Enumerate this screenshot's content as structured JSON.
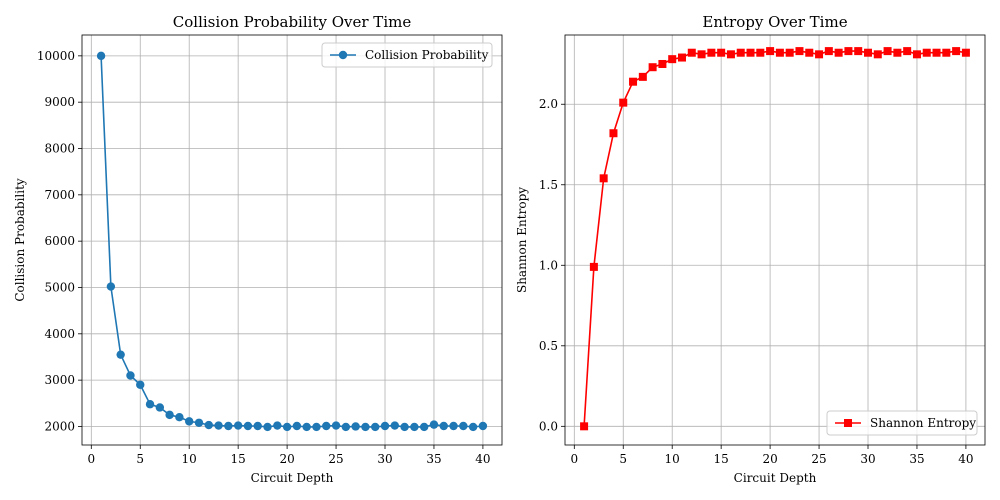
{
  "chart_data": [
    {
      "type": "line",
      "title": "Collision Probability Over Time",
      "xlabel": "Circuit Depth",
      "ylabel": "Collision Probability",
      "xlim": [
        -0.95,
        41.95
      ],
      "ylim": [
        1600,
        10450
      ],
      "xticks": [
        0,
        5,
        10,
        15,
        20,
        25,
        30,
        35,
        40
      ],
      "yticks": [
        2000,
        3000,
        4000,
        5000,
        6000,
        7000,
        8000,
        9000,
        10000
      ],
      "grid": true,
      "legend_position": "upper-right",
      "series": [
        {
          "name": "Collision Probability",
          "color": "#1f77b4",
          "marker": "circle",
          "x": [
            1,
            2,
            3,
            4,
            5,
            6,
            7,
            8,
            9,
            10,
            11,
            12,
            13,
            14,
            15,
            16,
            17,
            18,
            19,
            20,
            21,
            22,
            23,
            24,
            25,
            26,
            27,
            28,
            29,
            30,
            31,
            32,
            33,
            34,
            35,
            36,
            37,
            38,
            39,
            40
          ],
          "y": [
            10000,
            5020,
            3550,
            3100,
            2900,
            2480,
            2410,
            2250,
            2200,
            2110,
            2080,
            2030,
            2020,
            2010,
            2020,
            2010,
            2010,
            1990,
            2020,
            1990,
            2010,
            1990,
            1990,
            2010,
            2020,
            1990,
            2000,
            1990,
            1990,
            2010,
            2020,
            1990,
            1990,
            1990,
            2040,
            2010,
            2010,
            2010,
            1990,
            2010
          ]
        }
      ]
    },
    {
      "type": "line",
      "title": "Entropy Over Time",
      "xlabel": "Circuit Depth",
      "ylabel": "Shannon Entropy",
      "xlim": [
        -0.95,
        41.95
      ],
      "ylim": [
        -0.116,
        2.43
      ],
      "xticks": [
        0,
        5,
        10,
        15,
        20,
        25,
        30,
        35,
        40
      ],
      "yticks": [
        0.0,
        0.5,
        1.0,
        1.5,
        2.0
      ],
      "ytick_labels": [
        "0.0",
        "0.5",
        "1.0",
        "1.5",
        "2.0"
      ],
      "grid": true,
      "legend_position": "lower-right",
      "series": [
        {
          "name": "Shannon Entropy",
          "color": "#ff0000",
          "marker": "square",
          "x": [
            1,
            2,
            3,
            4,
            5,
            6,
            7,
            8,
            9,
            10,
            11,
            12,
            13,
            14,
            15,
            16,
            17,
            18,
            19,
            20,
            21,
            22,
            23,
            24,
            25,
            26,
            27,
            28,
            29,
            30,
            31,
            32,
            33,
            34,
            35,
            36,
            37,
            38,
            39,
            40
          ],
          "y": [
            0.0,
            0.99,
            1.54,
            1.82,
            2.01,
            2.14,
            2.17,
            2.23,
            2.25,
            2.28,
            2.29,
            2.32,
            2.31,
            2.32,
            2.32,
            2.31,
            2.32,
            2.32,
            2.32,
            2.33,
            2.32,
            2.32,
            2.33,
            2.32,
            2.31,
            2.33,
            2.32,
            2.33,
            2.33,
            2.32,
            2.31,
            2.33,
            2.32,
            2.33,
            2.31,
            2.32,
            2.32,
            2.32,
            2.33,
            2.32
          ]
        }
      ]
    }
  ]
}
